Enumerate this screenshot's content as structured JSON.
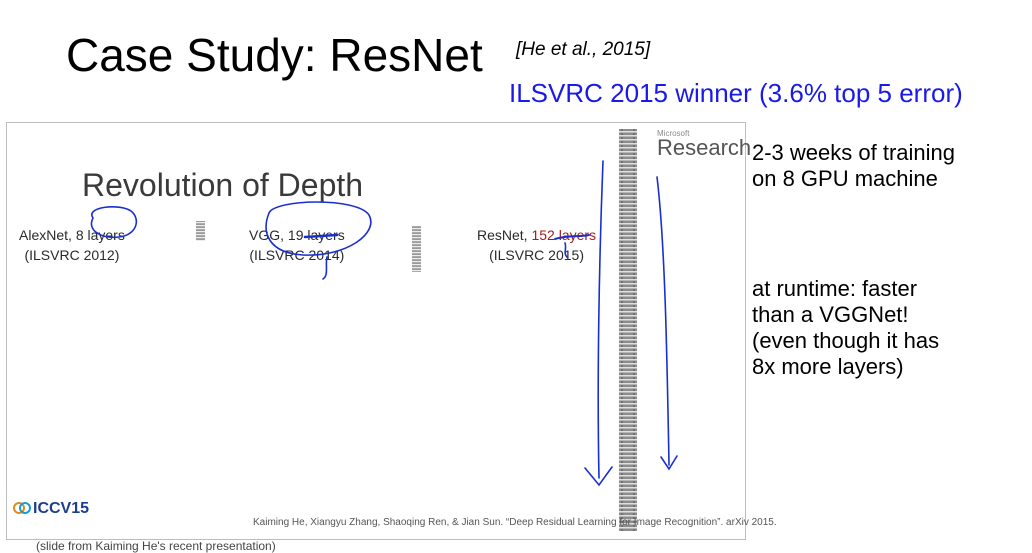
{
  "header": {
    "title": "Case Study: ResNet",
    "citation": "[He et al., 2015]",
    "subtitle": "ILSVRC 2015 winner (3.6% top 5 error)",
    "subtitle_color": "#1a1ae6"
  },
  "slide": {
    "brand_small": "Microsoft",
    "brand": "Research",
    "title": "Revolution of Depth",
    "networks": [
      {
        "name": "AlexNet, ",
        "layers": "8 layers",
        "event": "(ILSVRC 2012)"
      },
      {
        "name": "VGG, ",
        "layers": "19 layers",
        "event": "(ILSVRC 2014)"
      },
      {
        "name": "ResNet, ",
        "layers": "152 layers",
        "event": "(ILSVRC 2015)"
      }
    ],
    "conference_logo": "ICCV15",
    "reference": "Kaiming He, Xiangyu Zhang, Shaoqing Ren, & Jian Sun. “Deep Residual Learning for Image Recognition”. arXiv 2015."
  },
  "notes": {
    "training": [
      "2-3 weeks of training",
      "on 8 GPU machine"
    ],
    "runtime": [
      "at runtime: faster",
      "than a VGGNet!",
      "(even though it has",
      "8x more layers)"
    ]
  },
  "footnote": "(slide from Kaiming He's recent presentation)"
}
